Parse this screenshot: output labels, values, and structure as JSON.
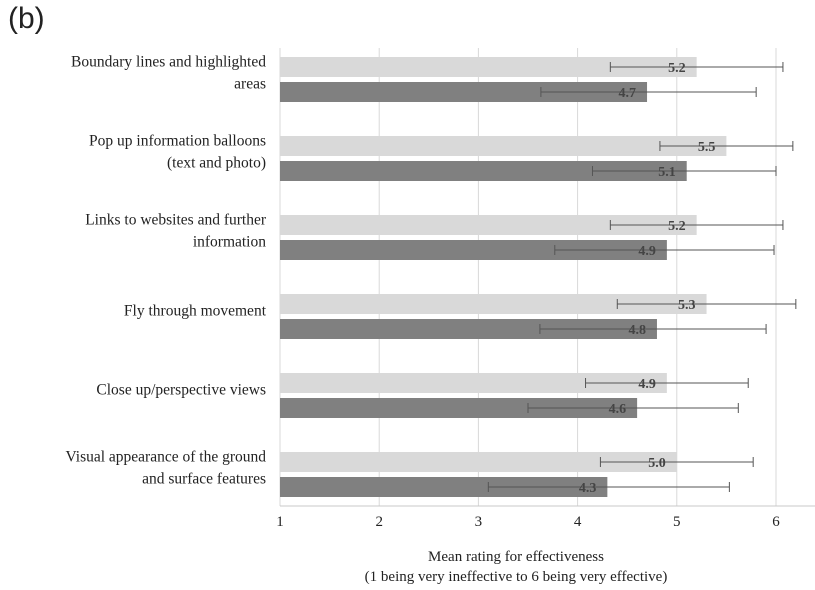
{
  "panel_label": "(b)",
  "chart_data": {
    "type": "bar",
    "orientation": "horizontal",
    "categories": [
      [
        "Boundary lines and highlighted",
        "areas"
      ],
      [
        "Pop up information balloons",
        "(text and photo)"
      ],
      [
        "Links to websites and further",
        "information"
      ],
      [
        "Fly through movement"
      ],
      [
        "Close up/perspective views"
      ],
      [
        "Visual appearance of the ground",
        "and surface features"
      ]
    ],
    "series": [
      {
        "color": "#d9d9d9",
        "values": [
          5.2,
          5.5,
          5.2,
          5.3,
          4.9,
          5.0
        ],
        "labels": [
          "5.2",
          "5.5",
          "5.2",
          "5.3",
          "4.9",
          "5.0"
        ],
        "error_low": [
          4.33,
          4.83,
          4.33,
          4.4,
          4.08,
          4.23
        ],
        "error_high": [
          6.07,
          6.17,
          6.07,
          6.2,
          5.72,
          5.77
        ]
      },
      {
        "color": "#808080",
        "values": [
          4.7,
          5.1,
          4.9,
          4.8,
          4.6,
          4.3
        ],
        "labels": [
          "4.7",
          "5.1",
          "4.9",
          "4.8",
          "4.6",
          "4.3"
        ],
        "error_low": [
          3.63,
          4.15,
          3.77,
          3.62,
          3.5,
          3.1
        ],
        "error_high": [
          5.8,
          6.0,
          5.98,
          5.9,
          5.62,
          5.53
        ]
      }
    ],
    "xlim": [
      1,
      6.4
    ],
    "xticks": [
      "1",
      "2",
      "3",
      "4",
      "5",
      "6"
    ],
    "xlabel": [
      "Mean rating for effectiveness",
      "(1 being very ineffective to 6 being very effective)"
    ],
    "grid": "vertical"
  }
}
